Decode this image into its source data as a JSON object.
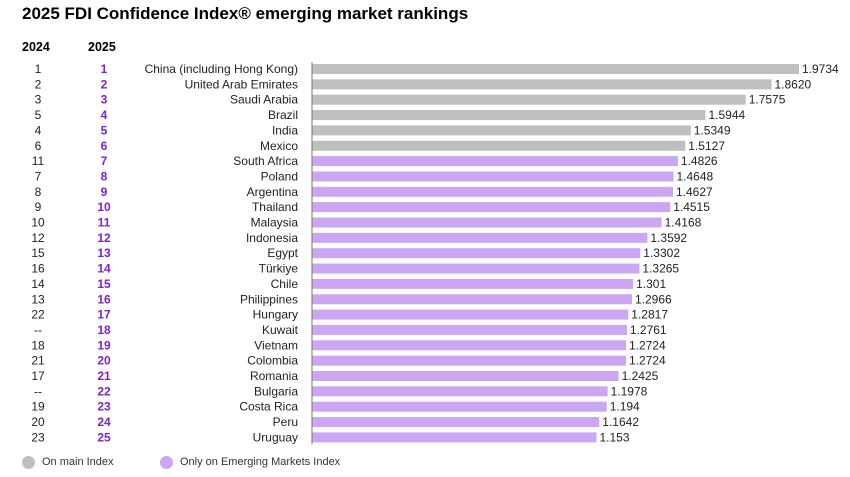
{
  "title": "2025 FDI Confidence Index® emerging market rankings",
  "columns": {
    "rank_2024": "2024",
    "rank_2025": "2025"
  },
  "colors": {
    "main_index": "#bfbfbf",
    "emerging_only": "#cba6f2",
    "rank2025_text": "#7e22ce",
    "axis": "#777777"
  },
  "legend": [
    {
      "label": "On main Index",
      "color": "#bfbfbf"
    },
    {
      "label": "Only on Emerging Markets Index",
      "color": "#cba6f2"
    }
  ],
  "chart_data": {
    "type": "bar",
    "orientation": "horizontal",
    "title": "2025 FDI Confidence Index® emerging market rankings",
    "xlim": [
      0,
      1.9734
    ],
    "grid": false,
    "legend_position": "bottom-left",
    "categories": [
      "China (including Hong Kong)",
      "United Arab Emirates",
      "Saudi Arabia",
      "Brazil",
      "India",
      "Mexico",
      "South Africa",
      "Poland",
      "Argentina",
      "Thailand",
      "Malaysia",
      "Indonesia",
      "Egypt",
      "Türkiye",
      "Chile",
      "Philippines",
      "Hungary",
      "Kuwait",
      "Vietnam",
      "Colombia",
      "Romania",
      "Bulgaria",
      "Costa Rica",
      "Peru",
      "Uruguay"
    ],
    "values": [
      1.9734,
      1.862,
      1.7575,
      1.5944,
      1.5349,
      1.5127,
      1.4826,
      1.4648,
      1.4627,
      1.4515,
      1.4168,
      1.3592,
      1.3302,
      1.3265,
      1.301,
      1.2966,
      1.2817,
      1.2761,
      1.2724,
      1.2724,
      1.2425,
      1.1978,
      1.194,
      1.1642,
      1.153
    ],
    "value_labels": [
      "1.9734",
      "1.8620",
      "1.7575",
      "1.5944",
      "1.5349",
      "1.5127",
      "1.4826",
      "1.4648",
      "1.4627",
      "1.4515",
      "1.4168",
      "1.3592",
      "1.3302",
      "1.3265",
      "1.301",
      "1.2966",
      "1.2817",
      "1.2761",
      "1.2724",
      "1.2724",
      "1.2425",
      "1.1978",
      "1.194",
      "1.1642",
      "1.153"
    ],
    "rank_2024": [
      "1",
      "2",
      "3",
      "5",
      "4",
      "6",
      "11",
      "7",
      "8",
      "9",
      "10",
      "12",
      "15",
      "16",
      "14",
      "13",
      "22",
      "--",
      "18",
      "21",
      "17",
      "--",
      "19",
      "20",
      "23"
    ],
    "rank_2025": [
      "1",
      "2",
      "3",
      "4",
      "5",
      "6",
      "7",
      "8",
      "9",
      "10",
      "11",
      "12",
      "13",
      "14",
      "15",
      "16",
      "17",
      "18",
      "19",
      "20",
      "21",
      "22",
      "23",
      "24",
      "25"
    ],
    "main_index": [
      true,
      true,
      true,
      true,
      true,
      true,
      false,
      false,
      false,
      false,
      false,
      false,
      false,
      false,
      false,
      false,
      false,
      false,
      false,
      false,
      false,
      false,
      false,
      false,
      false
    ]
  }
}
